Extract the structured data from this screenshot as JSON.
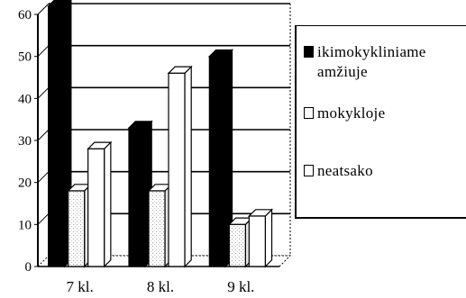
{
  "chart_data": {
    "type": "bar",
    "categories": [
      "7 kl.",
      "8 kl.",
      "9 kl."
    ],
    "series": [
      {
        "name": "ikimokykliniame amžiuje",
        "values": [
          62,
          33,
          50
        ],
        "color": "#000000"
      },
      {
        "name": "mokykloje",
        "values": [
          18,
          18,
          10
        ],
        "color": "#ffffff"
      },
      {
        "name": "neatsako",
        "values": [
          28,
          46,
          12
        ],
        "color": "#ffffff"
      }
    ],
    "ylim": [
      0,
      60
    ],
    "yticks": [
      "0",
      "10",
      "20",
      "30",
      "40",
      "50",
      "60"
    ],
    "grid": true,
    "legend_position": "right",
    "bar_style": "3d"
  }
}
